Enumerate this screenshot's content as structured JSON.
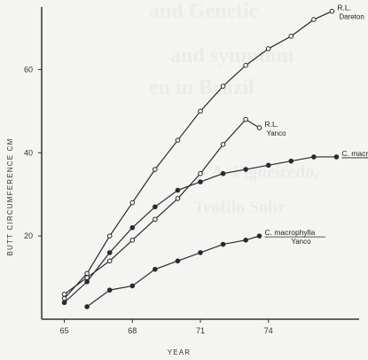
{
  "chart_data": {
    "type": "line",
    "xlabel": "YEAR",
    "ylabel": "BUTT CIRCUMFERENCE CM",
    "x_ticks": [
      65,
      68,
      71,
      74
    ],
    "y_ticks": [
      20,
      40,
      60
    ],
    "xlim": [
      64,
      78
    ],
    "ylim": [
      0,
      75
    ],
    "series": [
      {
        "name": "R.L.",
        "site": "Dareton",
        "underline": false,
        "marker": "open-circle",
        "x": [
          65,
          66,
          67,
          68,
          69,
          70,
          71,
          72,
          73,
          74,
          75,
          76,
          76.8
        ],
        "y": [
          5,
          11,
          20,
          28,
          36,
          43,
          50,
          56,
          61,
          65,
          68,
          72,
          74
        ]
      },
      {
        "name": "R.L.",
        "site": "Yanco",
        "underline": false,
        "marker": "open-circle",
        "x": [
          65,
          66,
          67,
          68,
          69,
          70,
          71,
          72,
          73,
          73.6
        ],
        "y": [
          6,
          10,
          14,
          19,
          24,
          29,
          35,
          42,
          48,
          46
        ]
      },
      {
        "name": "C. macrophylla",
        "site": "Dareton",
        "underline": true,
        "marker": "filled-circle",
        "x": [
          65,
          66,
          67,
          68,
          69,
          70,
          71,
          72,
          73,
          74,
          75,
          76,
          77
        ],
        "y": [
          4,
          9,
          16,
          22,
          27,
          31,
          33,
          35,
          36,
          37,
          38,
          39,
          39
        ]
      },
      {
        "name": "C. macrophylla",
        "site": "Yanco",
        "underline": true,
        "marker": "filled-circle",
        "x": [
          66,
          67,
          68,
          69,
          70,
          71,
          72,
          73,
          73.6
        ],
        "y": [
          3,
          7,
          8,
          12,
          14,
          16,
          18,
          19,
          20
        ]
      }
    ]
  }
}
